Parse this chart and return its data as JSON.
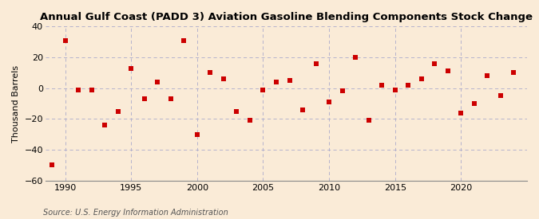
{
  "title": "Annual Gulf Coast (PADD 3) Aviation Gasoline Blending Components Stock Change",
  "ylabel": "Thousand Barrels",
  "source": "Source: U.S. Energy Information Administration",
  "xlim": [
    1988.5,
    2025
  ],
  "ylim": [
    -60,
    40
  ],
  "yticks": [
    -60,
    -40,
    -20,
    0,
    20,
    40
  ],
  "xticks": [
    1990,
    1995,
    2000,
    2005,
    2010,
    2015,
    2020
  ],
  "background_color": "#faebd7",
  "grid_color": "#aaaacc",
  "marker_color": "#cc0000",
  "data": [
    [
      1989,
      -50
    ],
    [
      1990,
      31
    ],
    [
      1991,
      -1
    ],
    [
      1992,
      -1
    ],
    [
      1993,
      -24
    ],
    [
      1994,
      -15
    ],
    [
      1995,
      13
    ],
    [
      1996,
      -7
    ],
    [
      1997,
      4
    ],
    [
      1998,
      -7
    ],
    [
      1999,
      31
    ],
    [
      2000,
      -30
    ],
    [
      2001,
      10
    ],
    [
      2002,
      6
    ],
    [
      2003,
      -15
    ],
    [
      2004,
      -21
    ],
    [
      2005,
      -1
    ],
    [
      2006,
      4
    ],
    [
      2007,
      5
    ],
    [
      2008,
      -14
    ],
    [
      2009,
      16
    ],
    [
      2010,
      -9
    ],
    [
      2011,
      -2
    ],
    [
      2012,
      20
    ],
    [
      2013,
      -21
    ],
    [
      2014,
      2
    ],
    [
      2015,
      -1
    ],
    [
      2016,
      2
    ],
    [
      2017,
      6
    ],
    [
      2018,
      16
    ],
    [
      2019,
      11
    ],
    [
      2020,
      -16
    ],
    [
      2021,
      -10
    ],
    [
      2022,
      8
    ],
    [
      2023,
      -5
    ],
    [
      2024,
      10
    ]
  ]
}
